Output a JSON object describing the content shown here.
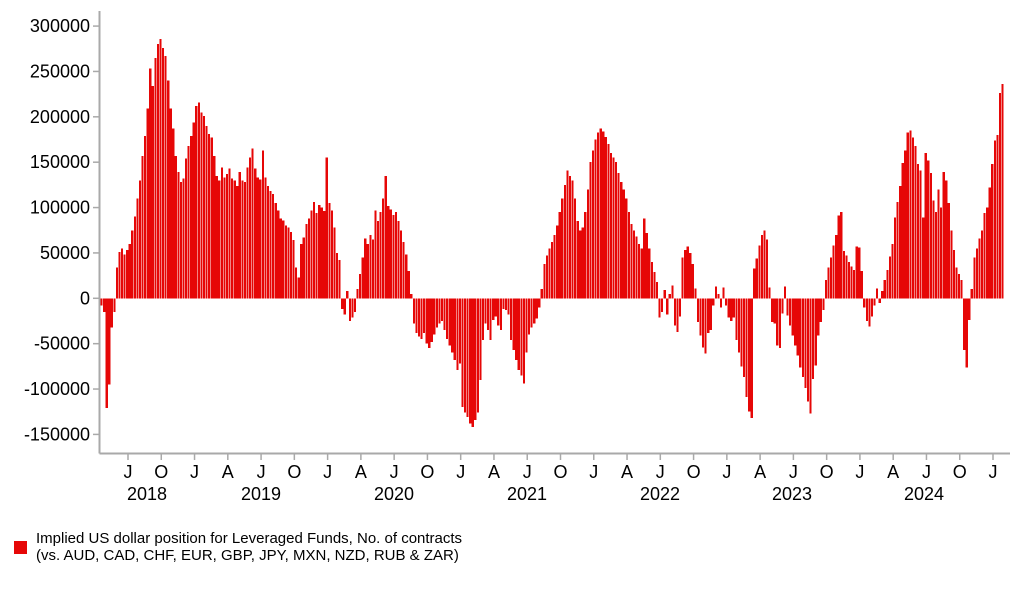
{
  "legend": {
    "line1": "Implied US dollar position for Leveraged Funds, No. of contracts",
    "line2": "(vs. AUD, CAD, CHF, EUR, GBP, JPY, MXN, NZD, RUB & ZAR)"
  },
  "colors": {
    "bar": "#e60707",
    "axis": "#a9a9a9",
    "label": "#000000",
    "background": "#ffffff"
  },
  "chart_data": {
    "type": "bar",
    "title": "",
    "series_name": "Implied US dollar position for Leveraged Funds, No. of contracts (vs. AUD, CAD, CHF, EUR, GBP, JPY, MXN, NZD, RUB & ZAR)",
    "frequency": "weekly",
    "start": "2018-04",
    "end": "2025-01",
    "ylim": [
      -150000,
      300000
    ],
    "ytick_step": 50000,
    "grid": false,
    "legend_position": "bottom-left",
    "ytick_labels": [
      "300000",
      "250000",
      "200000",
      "150000",
      "100000",
      "50000",
      "0",
      "-50000",
      "-100000",
      "-150000"
    ],
    "ytick_values": [
      300000,
      250000,
      200000,
      150000,
      100000,
      50000,
      0,
      -50000,
      -100000,
      -150000
    ],
    "xtick_month_labels": [
      "J",
      "O",
      "J",
      "A",
      "J",
      "O",
      "J",
      "A",
      "J",
      "O",
      "J",
      "A",
      "J",
      "O",
      "J",
      "A",
      "J",
      "O",
      "J",
      "A",
      "J",
      "O",
      "J",
      "A",
      "J",
      "O",
      "J"
    ],
    "xtick_first": "Jul 2018",
    "xtick_interval_months": 3,
    "year_labels": [
      "2018",
      "2019",
      "2020",
      "2021",
      "2022",
      "2023",
      "2024"
    ],
    "values": [
      -8000,
      -15000,
      -121000,
      -95000,
      -32000,
      -15000,
      34000,
      51000,
      55000,
      48000,
      53000,
      60000,
      75000,
      90000,
      110000,
      130000,
      157000,
      179000,
      209000,
      253000,
      234000,
      265000,
      280000,
      286000,
      276000,
      267000,
      240000,
      209000,
      187000,
      157000,
      139000,
      128000,
      132000,
      154000,
      168000,
      179000,
      194000,
      212000,
      216000,
      205000,
      201000,
      190000,
      181000,
      177000,
      157000,
      135000,
      130000,
      144000,
      133000,
      137000,
      143000,
      132000,
      130000,
      124000,
      139000,
      130000,
      128000,
      144000,
      155000,
      165000,
      143000,
      133000,
      131000,
      163000,
      133000,
      124000,
      118000,
      115000,
      105000,
      97000,
      88000,
      86000,
      80000,
      78000,
      73000,
      64000,
      34000,
      23000,
      60000,
      67000,
      82000,
      88000,
      97000,
      106000,
      94000,
      103000,
      100000,
      96000,
      155000,
      105000,
      97000,
      78000,
      50000,
      42000,
      -12000,
      -18000,
      8000,
      -25000,
      -21000,
      -15000,
      10000,
      27000,
      45000,
      66000,
      60000,
      70000,
      65000,
      97000,
      85000,
      95000,
      110000,
      135000,
      102000,
      98000,
      92000,
      95000,
      85000,
      75000,
      62000,
      48000,
      30000,
      5000,
      -28000,
      -38000,
      -42000,
      -45000,
      -38000,
      -50000,
      -55000,
      -48000,
      -40000,
      -32000,
      -28000,
      -25000,
      -35000,
      -45000,
      -52000,
      -60000,
      -68000,
      -79000,
      -72000,
      -120000,
      -126000,
      -131000,
      -138000,
      -142000,
      -134000,
      -126000,
      -90000,
      -46000,
      -28000,
      -35000,
      -46000,
      -24000,
      -20000,
      -30000,
      -35000,
      -12000,
      -13000,
      -18000,
      -46000,
      -57000,
      -68000,
      -79000,
      -85000,
      -94000,
      -60000,
      -40000,
      -32000,
      -28000,
      -22000,
      -10000,
      10000,
      38000,
      47000,
      55000,
      62000,
      70000,
      80000,
      95000,
      110000,
      125000,
      141000,
      135000,
      130000,
      110000,
      85000,
      75000,
      78000,
      95000,
      120000,
      150000,
      163000,
      175000,
      183000,
      187000,
      184000,
      178000,
      170000,
      160000,
      155000,
      150000,
      138000,
      128000,
      120000,
      110000,
      95000,
      82000,
      75000,
      68000,
      60000,
      55000,
      88000,
      72000,
      55000,
      40000,
      29000,
      18000,
      -21000,
      -15000,
      9000,
      -18000,
      5000,
      14000,
      -30000,
      -37000,
      -20000,
      45000,
      53000,
      57000,
      50000,
      38000,
      11000,
      -26000,
      -41000,
      -54000,
      -61000,
      -38000,
      -35000,
      -8000,
      13000,
      5000,
      -10000,
      12000,
      -8000,
      -21000,
      -25000,
      -21000,
      -46000,
      -60000,
      -75000,
      -87000,
      -109000,
      -125000,
      -132000,
      33000,
      44000,
      58000,
      70000,
      75000,
      65000,
      12000,
      -26000,
      -28000,
      -52000,
      -55000,
      -17000,
      13000,
      -19000,
      -30000,
      -41000,
      -52000,
      -63000,
      -76000,
      -87000,
      -99000,
      -114000,
      -127000,
      -89000,
      -74000,
      -41000,
      -26000,
      -13000,
      20000,
      34000,
      45000,
      58000,
      70000,
      91000,
      95000,
      52000,
      47000,
      40000,
      35000,
      31000,
      57000,
      56000,
      30000,
      -10000,
      -25000,
      -31000,
      -20000,
      -8000,
      11000,
      -5000,
      8000,
      20000,
      31000,
      46000,
      60000,
      89000,
      106000,
      124000,
      149000,
      163000,
      183000,
      185000,
      177000,
      168000,
      148000,
      141000,
      89000,
      160000,
      152000,
      138000,
      108000,
      95000,
      120000,
      100000,
      139000,
      130000,
      105000,
      75000,
      53000,
      34000,
      27000,
      20000,
      -57000,
      -76000,
      -24000,
      10000,
      45000,
      55000,
      66000,
      75000,
      94000,
      100000,
      122000,
      148000,
      174000,
      180000,
      226000,
      236000
    ]
  }
}
